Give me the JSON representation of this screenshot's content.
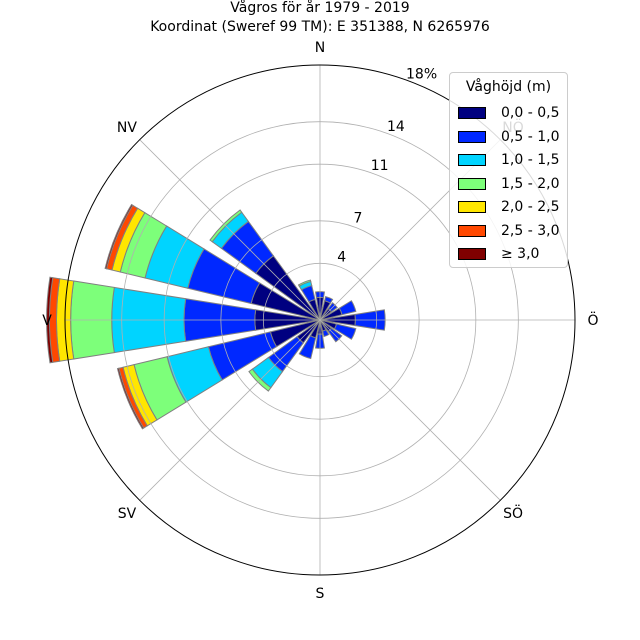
{
  "title": "Vågros för år 1979 - 2019",
  "subtitle": "Koordinat (Sweref 99 TM): E 351388, N 6265976",
  "chart_data": {
    "type": "polar-stacked-bar",
    "title": "Vågros för år 1979 - 2019",
    "subtitle": "Koordinat (Sweref 99 TM): E 351388, N 6265976",
    "direction_labels": [
      "N",
      "NÖ",
      "Ö",
      "SÖ",
      "S",
      "SV",
      "V",
      "NV"
    ],
    "radial_ticks": [
      {
        "value": 4,
        "label": "4"
      },
      {
        "value": 7,
        "label": "7"
      },
      {
        "value": 11,
        "label": "11"
      },
      {
        "value": 14,
        "label": "14"
      },
      {
        "value": 18,
        "label": "18%"
      }
    ],
    "rmax": 18,
    "sectors_deg": [
      0,
      22.5,
      45,
      67.5,
      90,
      112.5,
      135,
      157.5,
      180,
      202.5,
      225,
      247.5,
      270,
      292.5,
      315,
      337.5
    ],
    "legend_title": "Våghöjd (m)",
    "legend_items": [
      {
        "label": "0,0 - 0,5",
        "color": "#000080"
      },
      {
        "label": "0,5 - 1,0",
        "color": "#0028ff"
      },
      {
        "label": "1,0 - 1,5",
        "color": "#00d4ff"
      },
      {
        "label": "1,5 - 2,0",
        "color": "#7dff7a"
      },
      {
        "label": "2,0 - 2,5",
        "color": "#ffe600"
      },
      {
        "label": "2,5 - 3,0",
        "color": "#ff4800"
      },
      {
        "label": "≥ 3,0",
        "color": "#800000"
      }
    ],
    "series": [
      {
        "name": "0,0 - 0,5",
        "values": [
          1.6,
          1.4,
          1.0,
          1.6,
          2.5,
          1.2,
          1.0,
          0.8,
          1.0,
          1.3,
          2.0,
          3.6,
          4.6,
          5.0,
          5.6,
          1.5
        ]
      },
      {
        "name": "0,5 - 1,0",
        "values": [
          0.4,
          0.3,
          0.5,
          1.0,
          2.1,
          1.4,
          0.9,
          0.4,
          1.0,
          1.5,
          2.5,
          4.5,
          5.0,
          4.6,
          3.0,
          1.0
        ]
      },
      {
        "name": "1,0 - 1,5",
        "values": [
          0,
          0,
          0,
          0,
          0,
          0,
          0,
          0,
          0,
          0,
          1.4,
          3.0,
          5.1,
          3.1,
          0.8,
          0.3
        ]
      },
      {
        "name": "1,5 - 2,0",
        "values": [
          0,
          0,
          0,
          0,
          0,
          0,
          0,
          0,
          0,
          0,
          0.3,
          2.4,
          2.9,
          1.8,
          0.2,
          0.1
        ]
      },
      {
        "name": "2,0 - 2,5",
        "values": [
          0,
          0,
          0,
          0,
          0,
          0,
          0,
          0,
          0,
          0,
          0,
          0.8,
          1.0,
          0.6,
          0,
          0
        ]
      },
      {
        "name": "2,5 - 3,0",
        "values": [
          0,
          0,
          0,
          0,
          0,
          0,
          0,
          0,
          0,
          0,
          0,
          0.3,
          0.5,
          0.4,
          0,
          0
        ]
      },
      {
        "name": "≥ 3,0",
        "values": [
          0,
          0,
          0,
          0,
          0,
          0,
          0,
          0,
          0,
          0,
          0,
          0.1,
          0.2,
          0.1,
          0,
          0
        ]
      }
    ],
    "grid": true,
    "legend_position": "top-right"
  }
}
